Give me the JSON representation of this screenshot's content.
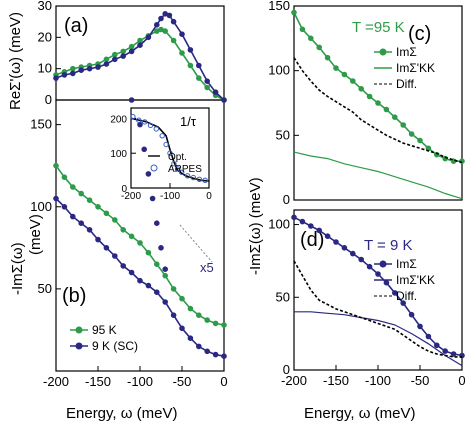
{
  "colors": {
    "green": "#2e9b4b",
    "blue": "#2a2882",
    "black": "#000000",
    "inset_open": "#3b5fc4",
    "ref_line": "#888888"
  },
  "figure": {
    "panel_a": "(a)",
    "panel_b": "(b)",
    "panel_c": "(c)",
    "panel_d": "(d)",
    "ylabel_a": "ReΣ'(ω) (meV)",
    "ylabel_b": "-ImΣ(ω)",
    "ylabel_b_unit": "(meV)",
    "ylabel_right": "-ImΣ(ω) (meV)",
    "xlabel_left": "Energy, ω (meV)",
    "xlabel_right": "Energy, ω (meV)",
    "temp_c": "T =95 K",
    "temp_d": "T = 9 K",
    "inset_title": "1/τ",
    "x5_label": "x5"
  },
  "chart_data": [
    {
      "panel": "a",
      "type": "line",
      "xlim": [
        -200,
        0
      ],
      "ylim": [
        0,
        30
      ],
      "yticks": [
        "0",
        "10",
        "20",
        "30"
      ],
      "ylabel": "ReΣ'(ω) (meV)",
      "series": [
        {
          "name": "95 K",
          "color": "green",
          "x": [
            -200,
            -190,
            -180,
            -170,
            -160,
            -150,
            -140,
            -130,
            -120,
            -110,
            -100,
            -90,
            -80,
            -75,
            -70,
            -60,
            -50,
            -40,
            -30,
            -20,
            -10,
            0
          ],
          "y": [
            8,
            9,
            10,
            10.5,
            11,
            11.5,
            13,
            14.5,
            15.5,
            17,
            19,
            20.5,
            22,
            22.5,
            22,
            19,
            15,
            11,
            7,
            4,
            1.5,
            0
          ]
        },
        {
          "name": "9 K (SC)",
          "color": "blue",
          "x": [
            -200,
            -190,
            -180,
            -170,
            -160,
            -150,
            -140,
            -130,
            -120,
            -110,
            -100,
            -90,
            -80,
            -75,
            -70,
            -65,
            -60,
            -50,
            -40,
            -30,
            -20,
            -10,
            0
          ],
          "y": [
            7,
            8,
            8.5,
            9.5,
            10,
            10.5,
            11.5,
            13,
            14,
            15.5,
            17.5,
            20,
            24,
            26,
            27.5,
            27,
            25,
            21,
            16,
            11,
            6,
            2.5,
            0
          ]
        }
      ]
    },
    {
      "panel": "b",
      "type": "line",
      "xlim": [
        -200,
        0
      ],
      "ylim": [
        0,
        165
      ],
      "xticks": [
        "-200",
        "-150",
        "-100",
        "-50",
        "0"
      ],
      "yticks": [
        "50",
        "100",
        "150"
      ],
      "xlabel": "Energy, ω (meV)",
      "legend": [
        "95 K",
        "9 K (SC)"
      ],
      "series": [
        {
          "name": "95 K",
          "color": "green",
          "x": [
            -200,
            -190,
            -180,
            -170,
            -160,
            -150,
            -140,
            -130,
            -120,
            -110,
            -100,
            -90,
            -80,
            -70,
            -60,
            -50,
            -40,
            -30,
            -20,
            -10,
            0
          ],
          "y": [
            125,
            118,
            112,
            108,
            104,
            100,
            96,
            92,
            86,
            82,
            78,
            72,
            65,
            58,
            50,
            44,
            38,
            34,
            31,
            29,
            28
          ]
        },
        {
          "name": "9 K (SC)",
          "color": "blue",
          "x": [
            -200,
            -190,
            -180,
            -170,
            -160,
            -150,
            -140,
            -130,
            -120,
            -110,
            -100,
            -90,
            -80,
            -70,
            -60,
            -50,
            -40,
            -30,
            -20,
            -10,
            0
          ],
          "y": [
            105,
            100,
            94,
            90,
            86,
            80,
            75,
            70,
            64,
            60,
            55,
            52,
            48,
            42,
            34,
            26,
            20,
            15,
            12,
            10,
            9
          ]
        },
        {
          "name": "x5",
          "color": "blue",
          "x": [
            -110,
            -100,
            -95,
            -90,
            -85,
            -80,
            -75,
            -70
          ],
          "y": [
            165,
            150,
            135,
            120,
            105,
            90,
            75,
            62
          ]
        }
      ]
    },
    {
      "panel": "b-inset",
      "type": "line",
      "xlim": [
        -200,
        0
      ],
      "ylim": [
        0,
        230
      ],
      "xticks": [
        "-200",
        "-100",
        "0"
      ],
      "yticks": [
        "0",
        "100",
        "200"
      ],
      "title": "1/τ",
      "legend": [
        "Opt.",
        "ARPES"
      ],
      "series": [
        {
          "name": "Opt.",
          "color": "black",
          "x": [
            -200,
            -160,
            -130,
            -110,
            -100,
            -90,
            -80,
            -60,
            -40,
            -20,
            0
          ],
          "y": [
            200,
            190,
            175,
            150,
            110,
            75,
            50,
            35,
            28,
            22,
            20
          ]
        },
        {
          "name": "ARPES",
          "color": "inset_open",
          "x": [
            -195,
            -180,
            -165,
            -150,
            -135,
            -120,
            -110,
            -100,
            -90,
            -80,
            -70,
            -55,
            -40,
            -25,
            -10
          ],
          "y": [
            205,
            195,
            190,
            180,
            170,
            150,
            125,
            100,
            70,
            55,
            45,
            35,
            30,
            25,
            22
          ]
        }
      ]
    },
    {
      "panel": "c",
      "type": "line",
      "xlim": [
        -200,
        0
      ],
      "ylim": [
        0,
        150
      ],
      "yticks": [
        "0",
        "50",
        "100",
        "150"
      ],
      "legend": [
        "ImΣ",
        "ImΣ'KK",
        "Diff."
      ],
      "series": [
        {
          "name": "ImΣ",
          "color": "green",
          "x": [
            -200,
            -190,
            -180,
            -170,
            -160,
            -150,
            -140,
            -130,
            -120,
            -110,
            -100,
            -90,
            -80,
            -70,
            -60,
            -50,
            -40,
            -30,
            -20,
            -10,
            0
          ],
          "y": [
            145,
            132,
            125,
            118,
            110,
            102,
            97,
            92,
            86,
            80,
            75,
            70,
            64,
            58,
            51,
            46,
            40,
            35,
            32,
            30,
            30
          ]
        },
        {
          "name": "ImΣ'KK",
          "color": "green",
          "x": [
            -200,
            -180,
            -160,
            -140,
            -120,
            -100,
            -80,
            -60,
            -40,
            -20,
            0
          ],
          "y": [
            37,
            34,
            32,
            28,
            25,
            22,
            18,
            14,
            10,
            5,
            1
          ]
        },
        {
          "name": "Diff.",
          "color": "black",
          "x": [
            -200,
            -190,
            -180,
            -170,
            -160,
            -150,
            -140,
            -130,
            -120,
            -110,
            -100,
            -90,
            -80,
            -70,
            -60,
            -50,
            -40,
            -30,
            -20,
            -10,
            0
          ],
          "y": [
            110,
            100,
            92,
            85,
            80,
            76,
            72,
            68,
            62,
            58,
            54,
            50,
            47,
            44,
            42,
            40,
            38,
            36,
            33,
            31,
            29
          ]
        }
      ]
    },
    {
      "panel": "d",
      "type": "line",
      "xlim": [
        -200,
        0
      ],
      "ylim": [
        0,
        110
      ],
      "xticks": [
        "-200",
        "-150",
        "-100",
        "-50",
        "0"
      ],
      "yticks": [
        "0",
        "50",
        "100"
      ],
      "xlabel": "Energy, ω (meV)",
      "legend": [
        "ImΣ",
        "ImΣ'KK",
        "Diff."
      ],
      "series": [
        {
          "name": "ImΣ",
          "color": "blue",
          "x": [
            -200,
            -190,
            -180,
            -170,
            -160,
            -150,
            -140,
            -130,
            -120,
            -110,
            -100,
            -90,
            -80,
            -70,
            -60,
            -50,
            -40,
            -30,
            -20,
            -10,
            0
          ],
          "y": [
            105,
            102,
            99,
            96,
            92,
            88,
            84,
            80,
            76,
            71,
            66,
            60,
            53,
            46,
            38,
            30,
            23,
            17,
            13,
            11,
            10
          ]
        },
        {
          "name": "ImΣ'KK",
          "color": "blue",
          "x": [
            -200,
            -180,
            -160,
            -140,
            -120,
            -100,
            -80,
            -60,
            -40,
            -20,
            0
          ],
          "y": [
            40,
            40,
            39,
            38,
            36,
            34,
            31,
            25,
            18,
            10,
            3
          ]
        },
        {
          "name": "Diff.",
          "color": "black",
          "x": [
            -200,
            -190,
            -180,
            -170,
            -160,
            -150,
            -140,
            -130,
            -120,
            -110,
            -100,
            -90,
            -80,
            -70,
            -60,
            -50,
            -40,
            -30,
            -20,
            -10,
            0
          ],
          "y": [
            75,
            65,
            55,
            48,
            45,
            42,
            40,
            38,
            36,
            34,
            32,
            30,
            28,
            24,
            20,
            16,
            13,
            11,
            10,
            9,
            9
          ]
        }
      ]
    }
  ]
}
